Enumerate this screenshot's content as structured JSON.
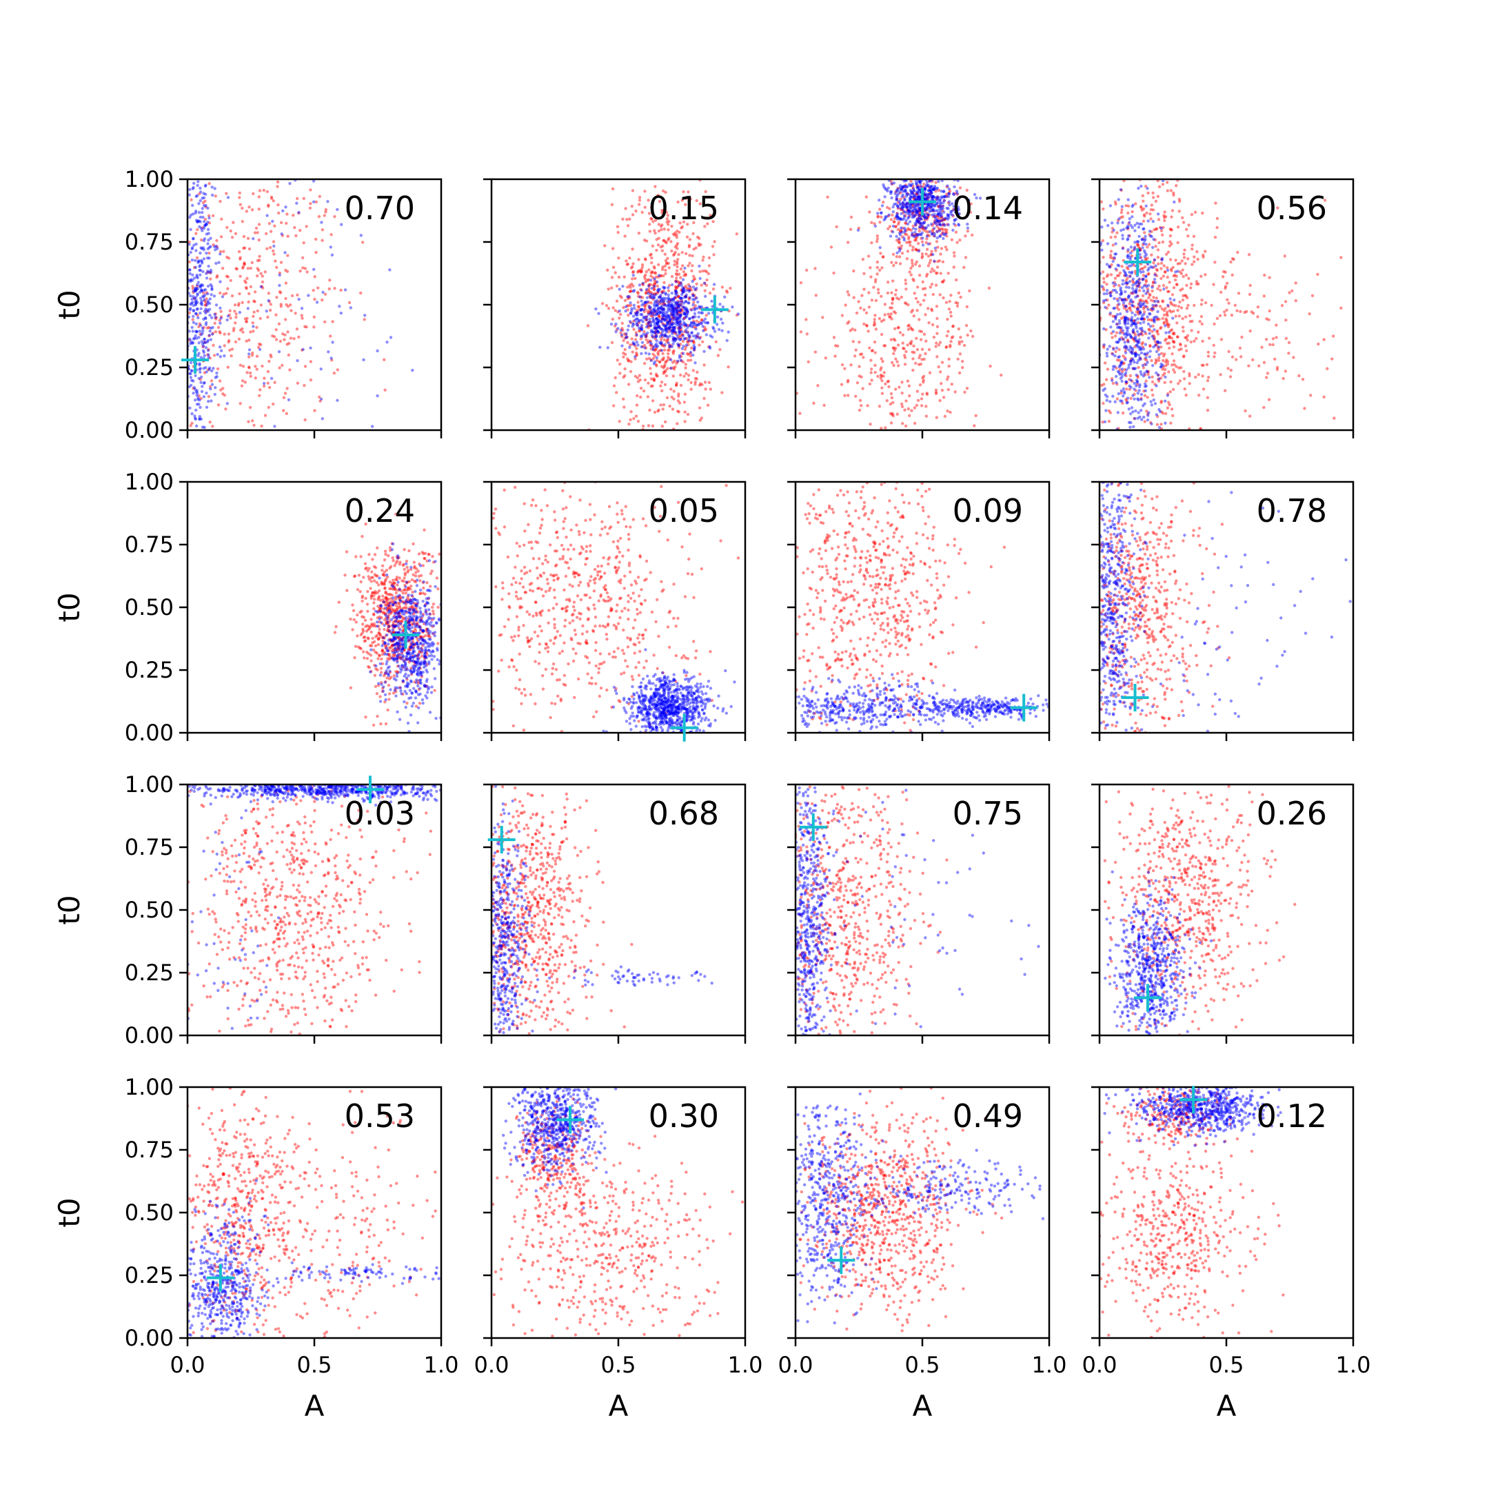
{
  "chart_data": {
    "type": "scatter",
    "layout": {
      "rows": 4,
      "cols": 4
    },
    "xlabel": "A",
    "ylabel": "t0",
    "xlim": [
      0,
      1
    ],
    "ylim": [
      0,
      1
    ],
    "xticks": [
      0.0,
      0.5,
      1.0
    ],
    "xtick_labels": [
      "0.0",
      "0.5",
      "1.0"
    ],
    "yticks": [
      0.0,
      0.25,
      0.5,
      0.75,
      1.0
    ],
    "ytick_labels": [
      "0.00",
      "0.25",
      "0.50",
      "0.75",
      "1.00"
    ],
    "legend": "none",
    "grid": false,
    "colors": {
      "red_series": "#ff0000",
      "blue_series": "#0000ff",
      "marker": "#17becf"
    },
    "panels": [
      {
        "label": "0.70",
        "marker": [
          0.03,
          0.28
        ],
        "blue": [
          {
            "cx": 0.04,
            "cy": 0.5,
            "sx": 0.04,
            "sy": 0.32,
            "n": 500
          },
          {
            "cx": 0.4,
            "cy": 0.5,
            "sx": 0.3,
            "sy": 0.3,
            "n": 90
          }
        ],
        "red": [
          {
            "cx": 0.22,
            "cy": 0.5,
            "sx": 0.2,
            "sy": 0.3,
            "n": 520
          }
        ]
      },
      {
        "label": "0.15",
        "marker": [
          0.88,
          0.48
        ],
        "blue": [
          {
            "cx": 0.7,
            "cy": 0.45,
            "sx": 0.09,
            "sy": 0.07,
            "n": 650
          }
        ],
        "red": [
          {
            "cx": 0.68,
            "cy": 0.48,
            "sx": 0.1,
            "sy": 0.26,
            "n": 850
          }
        ]
      },
      {
        "label": "0.14",
        "marker": [
          0.5,
          0.91
        ],
        "blue": [
          {
            "cx": 0.5,
            "cy": 0.9,
            "sx": 0.07,
            "sy": 0.07,
            "n": 600
          }
        ],
        "red": [
          {
            "cx": 0.5,
            "cy": 0.85,
            "sx": 0.08,
            "sy": 0.1,
            "n": 300
          },
          {
            "cx": 0.42,
            "cy": 0.35,
            "sx": 0.15,
            "sy": 0.25,
            "n": 500
          }
        ]
      },
      {
        "label": "0.56",
        "marker": [
          0.15,
          0.67
        ],
        "blue": [
          {
            "cx": 0.13,
            "cy": 0.45,
            "sx": 0.06,
            "sy": 0.25,
            "n": 600
          }
        ],
        "red": [
          {
            "cx": 0.2,
            "cy": 0.5,
            "sx": 0.12,
            "sy": 0.27,
            "n": 700
          },
          {
            "cx": 0.55,
            "cy": 0.4,
            "sx": 0.2,
            "sy": 0.2,
            "n": 150
          }
        ]
      },
      {
        "label": "0.24",
        "marker": [
          0.86,
          0.39
        ],
        "blue": [
          {
            "cx": 0.88,
            "cy": 0.35,
            "sx": 0.06,
            "sy": 0.12,
            "n": 600
          }
        ],
        "red": [
          {
            "cx": 0.82,
            "cy": 0.45,
            "sx": 0.08,
            "sy": 0.15,
            "n": 700
          }
        ]
      },
      {
        "label": "0.05",
        "marker": [
          0.76,
          0.02
        ],
        "blue": [
          {
            "cx": 0.7,
            "cy": 0.1,
            "sx": 0.08,
            "sy": 0.06,
            "n": 800
          }
        ],
        "red": [
          {
            "cx": 0.35,
            "cy": 0.55,
            "sx": 0.22,
            "sy": 0.25,
            "n": 650
          }
        ]
      },
      {
        "label": "0.09",
        "marker": [
          0.9,
          0.1
        ],
        "blue": [
          {
            "cx": 0.25,
            "cy": 0.1,
            "sx": 0.2,
            "sy": 0.05,
            "n": 400
          },
          {
            "cx": 0.75,
            "cy": 0.1,
            "sx": 0.15,
            "sy": 0.02,
            "n": 300
          }
        ],
        "red": [
          {
            "cx": 0.3,
            "cy": 0.55,
            "sx": 0.17,
            "sy": 0.25,
            "n": 650
          }
        ]
      },
      {
        "label": "0.78",
        "marker": [
          0.14,
          0.14
        ],
        "blue": [
          {
            "cx": 0.05,
            "cy": 0.5,
            "sx": 0.05,
            "sy": 0.3,
            "n": 550
          },
          {
            "cx": 0.5,
            "cy": 0.4,
            "sx": 0.3,
            "sy": 0.3,
            "n": 80
          }
        ],
        "red": [
          {
            "cx": 0.15,
            "cy": 0.5,
            "sx": 0.12,
            "sy": 0.3,
            "n": 650
          }
        ]
      },
      {
        "label": "0.03",
        "marker": [
          0.72,
          0.98
        ],
        "blue": [
          {
            "cx": 0.55,
            "cy": 0.98,
            "sx": 0.25,
            "sy": 0.02,
            "n": 700
          },
          {
            "cx": 0.15,
            "cy": 0.4,
            "sx": 0.1,
            "sy": 0.3,
            "n": 60
          }
        ],
        "red": [
          {
            "cx": 0.4,
            "cy": 0.5,
            "sx": 0.2,
            "sy": 0.28,
            "n": 700
          }
        ]
      },
      {
        "label": "0.68",
        "marker": [
          0.04,
          0.78
        ],
        "blue": [
          {
            "cx": 0.05,
            "cy": 0.35,
            "sx": 0.05,
            "sy": 0.25,
            "n": 500
          },
          {
            "cx": 0.6,
            "cy": 0.23,
            "sx": 0.15,
            "sy": 0.02,
            "n": 60
          }
        ],
        "red": [
          {
            "cx": 0.15,
            "cy": 0.45,
            "sx": 0.12,
            "sy": 0.28,
            "n": 750
          }
        ]
      },
      {
        "label": "0.75",
        "marker": [
          0.07,
          0.83
        ],
        "blue": [
          {
            "cx": 0.05,
            "cy": 0.45,
            "sx": 0.04,
            "sy": 0.3,
            "n": 550
          },
          {
            "cx": 0.5,
            "cy": 0.5,
            "sx": 0.3,
            "sy": 0.3,
            "n": 70
          }
        ],
        "red": [
          {
            "cx": 0.18,
            "cy": 0.5,
            "sx": 0.15,
            "sy": 0.3,
            "n": 700
          }
        ]
      },
      {
        "label": "0.26",
        "marker": [
          0.19,
          0.15
        ],
        "blue": [
          {
            "cx": 0.2,
            "cy": 0.25,
            "sx": 0.07,
            "sy": 0.15,
            "n": 600
          }
        ],
        "red": [
          {
            "cx": 0.35,
            "cy": 0.55,
            "sx": 0.15,
            "sy": 0.25,
            "n": 650
          }
        ]
      },
      {
        "label": "0.53",
        "marker": [
          0.13,
          0.24
        ],
        "blue": [
          {
            "cx": 0.13,
            "cy": 0.2,
            "sx": 0.08,
            "sy": 0.15,
            "n": 500
          },
          {
            "cx": 0.7,
            "cy": 0.26,
            "sx": 0.18,
            "sy": 0.015,
            "n": 90
          }
        ],
        "red": [
          {
            "cx": 0.2,
            "cy": 0.5,
            "sx": 0.12,
            "sy": 0.25,
            "n": 500
          },
          {
            "cx": 0.6,
            "cy": 0.45,
            "sx": 0.2,
            "sy": 0.25,
            "n": 200
          }
        ]
      },
      {
        "label": "0.30",
        "marker": [
          0.31,
          0.87
        ],
        "blue": [
          {
            "cx": 0.25,
            "cy": 0.85,
            "sx": 0.08,
            "sy": 0.1,
            "n": 600
          }
        ],
        "red": [
          {
            "cx": 0.25,
            "cy": 0.7,
            "sx": 0.08,
            "sy": 0.12,
            "n": 300
          },
          {
            "cx": 0.45,
            "cy": 0.3,
            "sx": 0.2,
            "sy": 0.2,
            "n": 450
          }
        ]
      },
      {
        "label": "0.49",
        "marker": [
          0.18,
          0.31
        ],
        "blue": [
          {
            "cx": 0.12,
            "cy": 0.55,
            "sx": 0.08,
            "sy": 0.2,
            "n": 500
          },
          {
            "cx": 0.6,
            "cy": 0.6,
            "sx": 0.2,
            "sy": 0.05,
            "n": 200
          }
        ],
        "red": [
          {
            "cx": 0.35,
            "cy": 0.5,
            "sx": 0.15,
            "sy": 0.2,
            "n": 750
          }
        ]
      },
      {
        "label": "0.12",
        "marker": [
          0.37,
          0.95
        ],
        "blue": [
          {
            "cx": 0.4,
            "cy": 0.92,
            "sx": 0.12,
            "sy": 0.05,
            "n": 650
          }
        ],
        "red": [
          {
            "cx": 0.3,
            "cy": 0.9,
            "sx": 0.1,
            "sy": 0.06,
            "n": 200
          },
          {
            "cx": 0.3,
            "cy": 0.4,
            "sx": 0.15,
            "sy": 0.22,
            "n": 500
          }
        ]
      }
    ]
  }
}
